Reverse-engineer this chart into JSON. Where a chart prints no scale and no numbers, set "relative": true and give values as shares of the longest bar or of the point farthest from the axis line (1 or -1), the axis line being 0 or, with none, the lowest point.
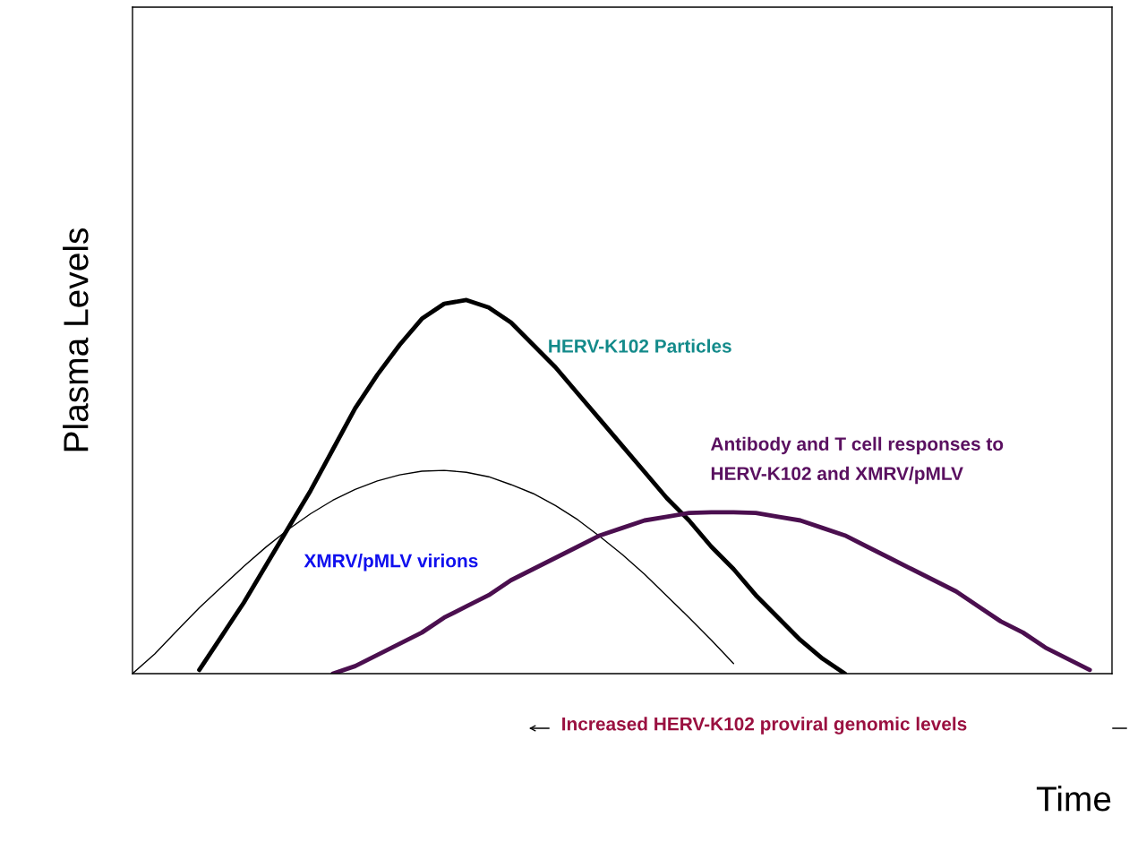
{
  "chart_data": {
    "type": "line",
    "relative": true,
    "xlabel": "Time",
    "ylabel": "Plasma Levels",
    "categories": [
      null,
      null,
      null,
      null,
      null,
      null,
      null,
      null,
      null,
      null,
      null,
      null,
      null,
      null,
      null,
      null,
      null,
      null,
      null,
      null,
      null,
      null,
      null,
      null,
      null,
      null,
      null,
      null,
      null,
      null,
      null,
      null,
      null,
      null,
      null,
      null,
      null,
      null,
      null,
      null,
      null,
      null,
      null,
      null,
      null
    ],
    "series": [
      {
        "name": "XMRV/pMLV virions",
        "color": "#000000",
        "values": [
          0,
          0.053,
          0.115,
          0.176,
          0.232,
          0.287,
          0.339,
          0.386,
          0.428,
          0.464,
          0.493,
          0.516,
          0.532,
          0.542,
          0.544,
          0.539,
          0.527,
          0.506,
          0.482,
          0.45,
          0.412,
          0.367,
          0.319,
          0.266,
          0.208,
          0.15,
          0.09,
          0.027,
          null,
          null,
          null,
          null,
          null,
          null,
          null,
          null,
          null,
          null,
          null,
          null,
          null,
          null,
          null,
          null,
          null
        ]
      },
      {
        "name": "HERV-K102 Particles",
        "color": "#000000",
        "values": [
          null,
          null,
          null,
          0.01,
          0.1,
          0.19,
          0.29,
          0.39,
          0.49,
          0.6,
          0.71,
          0.8,
          0.88,
          0.95,
          0.99,
          1.0,
          0.98,
          0.94,
          0.88,
          0.82,
          0.75,
          0.68,
          0.61,
          0.54,
          0.47,
          0.41,
          0.34,
          0.28,
          0.21,
          0.15,
          0.09,
          0.04,
          0,
          null,
          null,
          null,
          null,
          null,
          null,
          null,
          null,
          null,
          null,
          null,
          null
        ]
      },
      {
        "name": "Antibody and T cell responses to\nHERV-K102 and XMRV/pMLV",
        "color": "#4b0f4f",
        "values": [
          null,
          null,
          null,
          null,
          null,
          null,
          null,
          null,
          null,
          0,
          0.02,
          0.05,
          0.08,
          0.11,
          0.15,
          0.18,
          0.21,
          0.25,
          0.28,
          0.31,
          0.34,
          0.37,
          0.39,
          0.41,
          0.42,
          0.43,
          0.432,
          0.432,
          0.43,
          0.42,
          0.41,
          0.39,
          0.37,
          0.34,
          0.31,
          0.28,
          0.25,
          0.22,
          0.18,
          0.14,
          0.11,
          0.07,
          0.04,
          0.01,
          null
        ]
      }
    ],
    "annotations": [
      "Increased HERV-K102 proviral genomic levels"
    ],
    "legend": false,
    "marker": "none",
    "line_style": "solid"
  }
}
